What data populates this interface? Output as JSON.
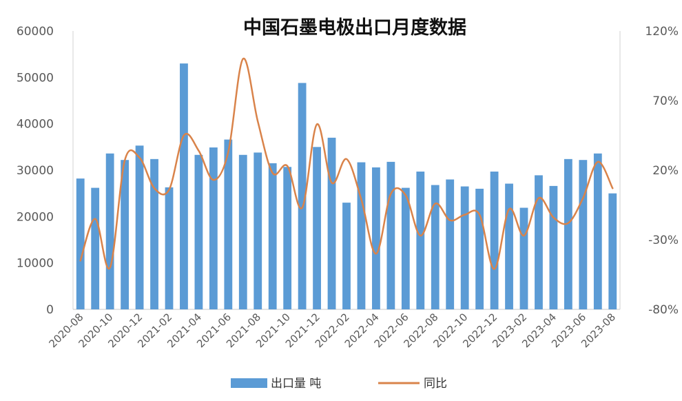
{
  "chart_data": {
    "type": "bar",
    "title": "中国石墨电极出口月度数据",
    "x_ticks": [
      "2020-08",
      "2020-10",
      "2020-12",
      "2021-02",
      "2021-04",
      "2021-06",
      "2021-08",
      "2021-10",
      "2021-12",
      "2022-02",
      "2022-04",
      "2022-06",
      "2022-08",
      "2022-10",
      "2022-12",
      "2023-02",
      "2023-04",
      "2023-06",
      "2023-08"
    ],
    "categories": [
      "2020-08",
      "2020-09",
      "2020-10",
      "2020-11",
      "2020-12",
      "2021-01",
      "2021-02",
      "2021-03",
      "2021-04",
      "2021-05",
      "2021-06",
      "2021-07",
      "2021-08",
      "2021-09",
      "2021-10",
      "2021-11",
      "2021-12",
      "2022-01",
      "2022-02",
      "2022-03",
      "2022-04",
      "2022-05",
      "2022-06",
      "2022-07",
      "2022-08",
      "2022-09",
      "2022-10",
      "2022-11",
      "2022-12",
      "2023-01",
      "2023-02",
      "2023-03",
      "2023-04",
      "2023-05",
      "2023-06",
      "2023-07",
      "2023-08"
    ],
    "y_left": {
      "ticks": [
        "0",
        "10000",
        "20000",
        "30000",
        "40000",
        "50000",
        "60000"
      ],
      "ylim": [
        0,
        60000
      ]
    },
    "y_right": {
      "ticks": [
        "-80%",
        "-30%",
        "20%",
        "70%",
        "120%"
      ],
      "ylim": [
        -80,
        120
      ]
    },
    "series": [
      {
        "name": "出口量 吨",
        "type": "bar",
        "axis": "left",
        "color": "#5b9bd5",
        "values": [
          28200,
          26200,
          33600,
          32200,
          35300,
          32400,
          26300,
          53000,
          33300,
          34900,
          36600,
          33300,
          33800,
          31500,
          30700,
          48800,
          35000,
          37000,
          23000,
          31700,
          30600,
          31800,
          26200,
          29700,
          26800,
          28000,
          26500,
          26000,
          29700,
          27100,
          21900,
          28900,
          26600,
          32400,
          32200,
          33600,
          25000
        ]
      },
      {
        "name": "同比",
        "type": "line",
        "axis": "right",
        "color": "#d9834a",
        "values": [
          -45,
          -15,
          -50,
          27,
          29,
          7,
          6,
          45,
          34,
          13,
          33,
          100,
          55,
          18,
          23,
          -7,
          53,
          11,
          28,
          -1,
          -40,
          3,
          2,
          -27,
          -4,
          -16,
          -12,
          -12,
          -51,
          -8,
          -27,
          0,
          -14,
          -18,
          0,
          26,
          7
        ]
      }
    ],
    "legend": {
      "position": "bottom",
      "items": [
        "出口量 吨",
        "同比"
      ]
    },
    "grid": false
  }
}
